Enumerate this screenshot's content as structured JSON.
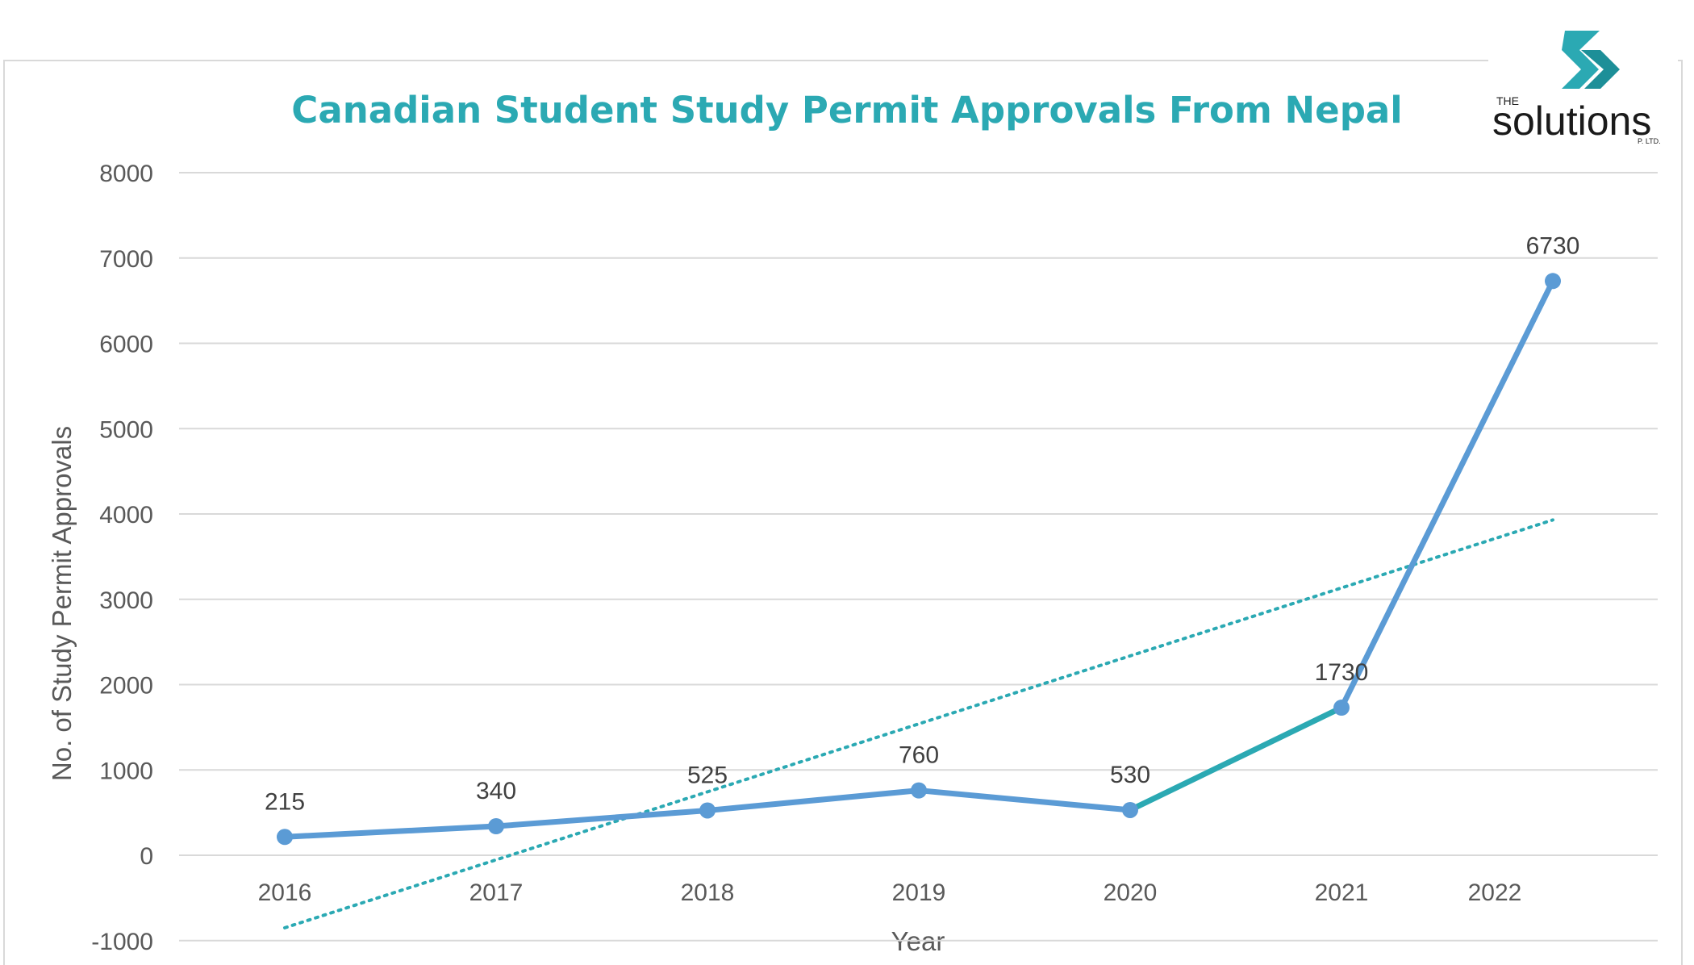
{
  "logo": {
    "prefix": "THE",
    "name": "solutions",
    "suffix": "P. LTD."
  },
  "chart_data": {
    "type": "line",
    "title": "Canadian Student Study Permit Approvals From Nepal",
    "xlabel": "Year",
    "ylabel": "No. of Study Permit Approvals",
    "categories": [
      "2016",
      "2017",
      "2018",
      "2019",
      "2020",
      "2021",
      "2022"
    ],
    "series": [
      {
        "values": [
          215,
          340,
          525,
          760,
          530,
          1730,
          6730
        ],
        "data_labels": [
          "215",
          "340",
          "525",
          "760",
          "530",
          "1730",
          "6730"
        ]
      }
    ],
    "trendline": {
      "type": "linear",
      "style": "dotted",
      "start": -850,
      "end": 3930
    },
    "yticks": [
      "8000",
      "7000",
      "6000",
      "5000",
      "4000",
      "3000",
      "2000",
      "1000",
      "0",
      "-1000"
    ],
    "ylim": [
      -1000,
      8000
    ],
    "grid": true,
    "colors": {
      "series": "#5B9BD5",
      "highlight_segment": "#2BA9B3",
      "trendline": "#2BA9B3",
      "title": "#2BA9B3",
      "gridline": "#D9D9D9"
    }
  }
}
